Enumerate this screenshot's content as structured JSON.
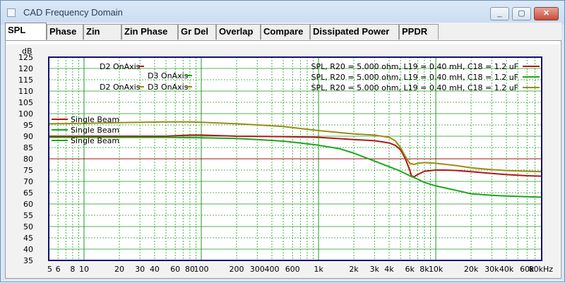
{
  "window": {
    "title": "CAD Frequency Domain",
    "min_label": "_",
    "max_label": "▢",
    "close_label": "✕"
  },
  "tabs": [
    {
      "label": "SPL",
      "active": true
    },
    {
      "label": "Phase",
      "active": false
    },
    {
      "label": "Zin",
      "active": false
    },
    {
      "label": "Zin Phase",
      "active": false
    },
    {
      "label": "Gr Del",
      "active": false
    },
    {
      "label": "Overlap",
      "active": false
    },
    {
      "label": "Compare",
      "active": false
    },
    {
      "label": "Dissipated Power",
      "active": false
    },
    {
      "label": "PPDR",
      "active": false
    }
  ],
  "colors": {
    "red": "#b01818",
    "green": "#1ea51e",
    "olive": "#9c8c16",
    "plot_bg": "#ffffff",
    "grid": "#1e9a1e",
    "ref_line": "#9c1010",
    "frame": "#101070"
  },
  "chart_data": {
    "type": "line",
    "title": "",
    "xlabel": "Hz",
    "ylabel": "dB",
    "xscale": "log",
    "xlim": [
      5,
      80000
    ],
    "ylim": [
      35,
      125
    ],
    "y_ticks": [
      35,
      40,
      45,
      50,
      55,
      60,
      65,
      70,
      75,
      80,
      85,
      90,
      95,
      100,
      105,
      110,
      115,
      120,
      125
    ],
    "x_ticks": [
      {
        "v": 5,
        "label": "5"
      },
      {
        "v": 6,
        "label": "6"
      },
      {
        "v": 8,
        "label": "8"
      },
      {
        "v": 10,
        "label": "10"
      },
      {
        "v": 20,
        "label": "20"
      },
      {
        "v": 30,
        "label": "30"
      },
      {
        "v": 40,
        "label": "40"
      },
      {
        "v": 60,
        "label": "60"
      },
      {
        "v": 80,
        "label": "80"
      },
      {
        "v": 100,
        "label": "100"
      },
      {
        "v": 200,
        "label": "200"
      },
      {
        "v": 300,
        "label": "300"
      },
      {
        "v": 400,
        "label": "400"
      },
      {
        "v": 600,
        "label": "600"
      },
      {
        "v": 1000,
        "label": "1k"
      },
      {
        "v": 2000,
        "label": "2k"
      },
      {
        "v": 3000,
        "label": "3k"
      },
      {
        "v": 4000,
        "label": "4k"
      },
      {
        "v": 6000,
        "label": "6k"
      },
      {
        "v": 8000,
        "label": "8k"
      },
      {
        "v": 10000,
        "label": "10k"
      },
      {
        "v": 20000,
        "label": "20k"
      },
      {
        "v": 30000,
        "label": "30k"
      },
      {
        "v": 40000,
        "label": "40k"
      },
      {
        "v": 60000,
        "label": "60k"
      },
      {
        "v": 80000,
        "label": "80kHz"
      }
    ],
    "reference_level_db": 80,
    "legend_left": [
      {
        "label": "D2 OnAxis",
        "color": "#b01818"
      },
      {
        "label": "D3 OnAxis",
        "color": "#1ea51e"
      },
      {
        "label": "D2 OnAxis",
        "color": "#9c8c16"
      },
      {
        "label": "D3 OnAxis",
        "color": "#9c8c16"
      }
    ],
    "legend_right": [
      {
        "label": "SPL, R20 = 5.000 ohm, L19 = 0.40 mH, C18 = 1.2 uF",
        "color": "#b01818"
      },
      {
        "label": "SPL, R20 = 5.000 ohm, L19 = 0.40 mH, C18 = 1.2 uF",
        "color": "#1ea51e"
      },
      {
        "label": "SPL, R20 = 5.000 ohm, L19 = 0.40 mH, C18 = 1.2 uF",
        "color": "#9c8c16"
      }
    ],
    "legend_beam": [
      {
        "label": "Single Beam",
        "color": "#b01818"
      },
      {
        "label": "Single Beam",
        "color": "#1ea51e"
      },
      {
        "label": "Single Beam",
        "color": "#1ea51e"
      }
    ],
    "series": [
      {
        "name": "SPL red",
        "color": "#b01818",
        "x": [
          5,
          10,
          20,
          50,
          80,
          100,
          200,
          500,
          1000,
          2000,
          3000,
          3500,
          4000,
          4500,
          5000,
          5500,
          6000,
          6200,
          6500,
          7000,
          8000,
          10000,
          12000,
          15000,
          20000,
          30000,
          40000,
          60000,
          80000
        ],
        "y": [
          90,
          90,
          90,
          90,
          90.5,
          90.5,
          90,
          89.8,
          89.5,
          88.5,
          88,
          87.5,
          87,
          86,
          84,
          80,
          75,
          72.5,
          72,
          73,
          74.5,
          75,
          75,
          74.8,
          74.3,
          73.5,
          73,
          72.5,
          72.3
        ]
      },
      {
        "name": "SPL green",
        "color": "#1ea51e",
        "x": [
          5,
          10,
          20,
          50,
          100,
          200,
          300,
          500,
          700,
          1000,
          1500,
          2000,
          3000,
          4000,
          5000,
          6000,
          7000,
          8000,
          10000,
          15000,
          20000,
          30000,
          40000,
          60000,
          80000
        ],
        "y": [
          89.5,
          89.5,
          89.5,
          89.5,
          89.3,
          89,
          88.5,
          87.8,
          87,
          86,
          84.5,
          82.5,
          79,
          76.5,
          74.5,
          72.5,
          71,
          69.5,
          68,
          66,
          64.5,
          63.8,
          63.5,
          63.2,
          63
        ]
      },
      {
        "name": "SPL olive",
        "color": "#9c8c16",
        "x": [
          5,
          10,
          20,
          50,
          80,
          100,
          200,
          300,
          500,
          1000,
          2000,
          3000,
          4000,
          4500,
          5000,
          5500,
          6000,
          6500,
          7000,
          8000,
          10000,
          15000,
          20000,
          30000,
          40000,
          60000,
          80000
        ],
        "y": [
          95.5,
          95.7,
          96,
          96.3,
          96.3,
          96.2,
          95.5,
          95,
          94.3,
          92.5,
          91,
          90.5,
          89.5,
          88,
          85,
          81,
          78,
          77.5,
          78,
          78.3,
          78,
          77,
          76,
          75.2,
          74.8,
          74.5,
          74.3
        ]
      }
    ]
  }
}
